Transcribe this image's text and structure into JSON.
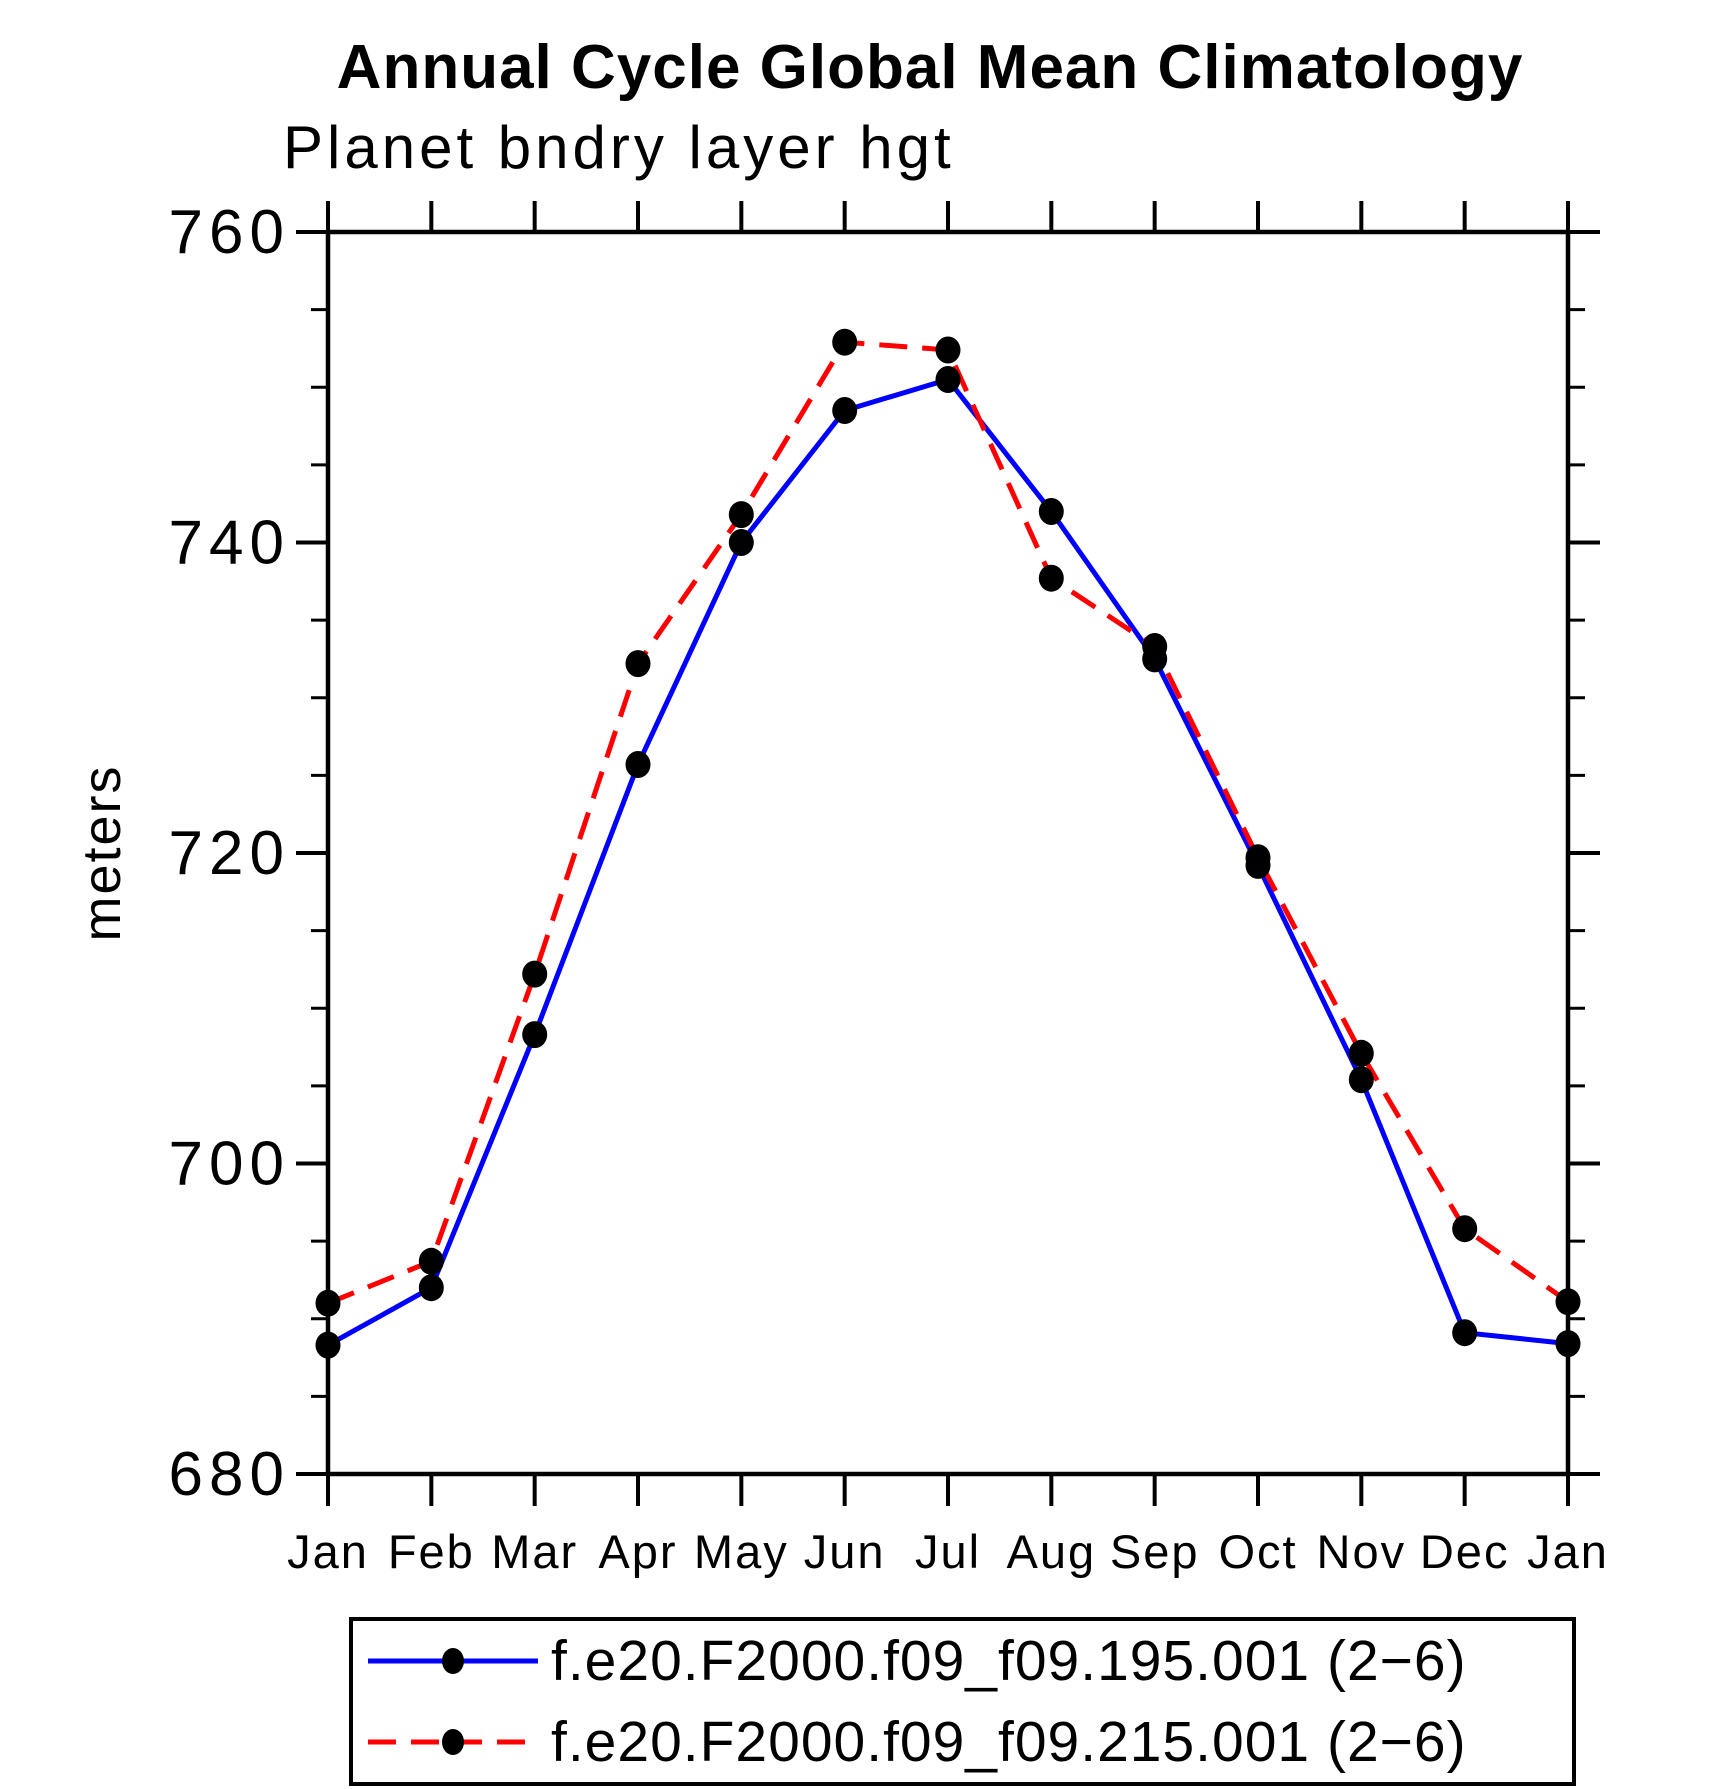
{
  "chart_data": {
    "type": "line",
    "title": "Annual Cycle Global Mean Climatology",
    "subtitle": "Planet bndry layer hgt",
    "ylabel": "meters",
    "xlabel": "",
    "categories": [
      "Jan",
      "Feb",
      "Mar",
      "Apr",
      "May",
      "Jun",
      "Jul",
      "Aug",
      "Sep",
      "Oct",
      "Nov",
      "Dec",
      "Jan"
    ],
    "ylim": [
      680,
      760
    ],
    "y_major_step": 20,
    "y_minor_step": 5,
    "y_tick_labels": [
      "680",
      "700",
      "720",
      "740",
      "760"
    ],
    "grid": false,
    "legend_position": "bottom",
    "axis_color": "#000000",
    "marker_color": "#000000",
    "series": [
      {
        "name": "f.e20.F2000.f09_f09.195.001 (2−6)",
        "color": "#0000ff",
        "style": "solid",
        "marker": "filled-black-dot",
        "values": [
          688.3,
          692.0,
          708.3,
          725.7,
          740.0,
          748.5,
          750.5,
          742.0,
          732.5,
          719.2,
          705.4,
          689.1,
          688.4
        ]
      },
      {
        "name": "f.e20.F2000.f09_f09.215.001 (2−6)",
        "color": "#ff0000",
        "style": "dashed",
        "marker": "filled-black-dot",
        "values": [
          691.0,
          693.7,
          712.2,
          732.2,
          741.8,
          752.9,
          752.4,
          737.7,
          733.3,
          719.7,
          707.1,
          695.8,
          691.1
        ]
      }
    ]
  }
}
